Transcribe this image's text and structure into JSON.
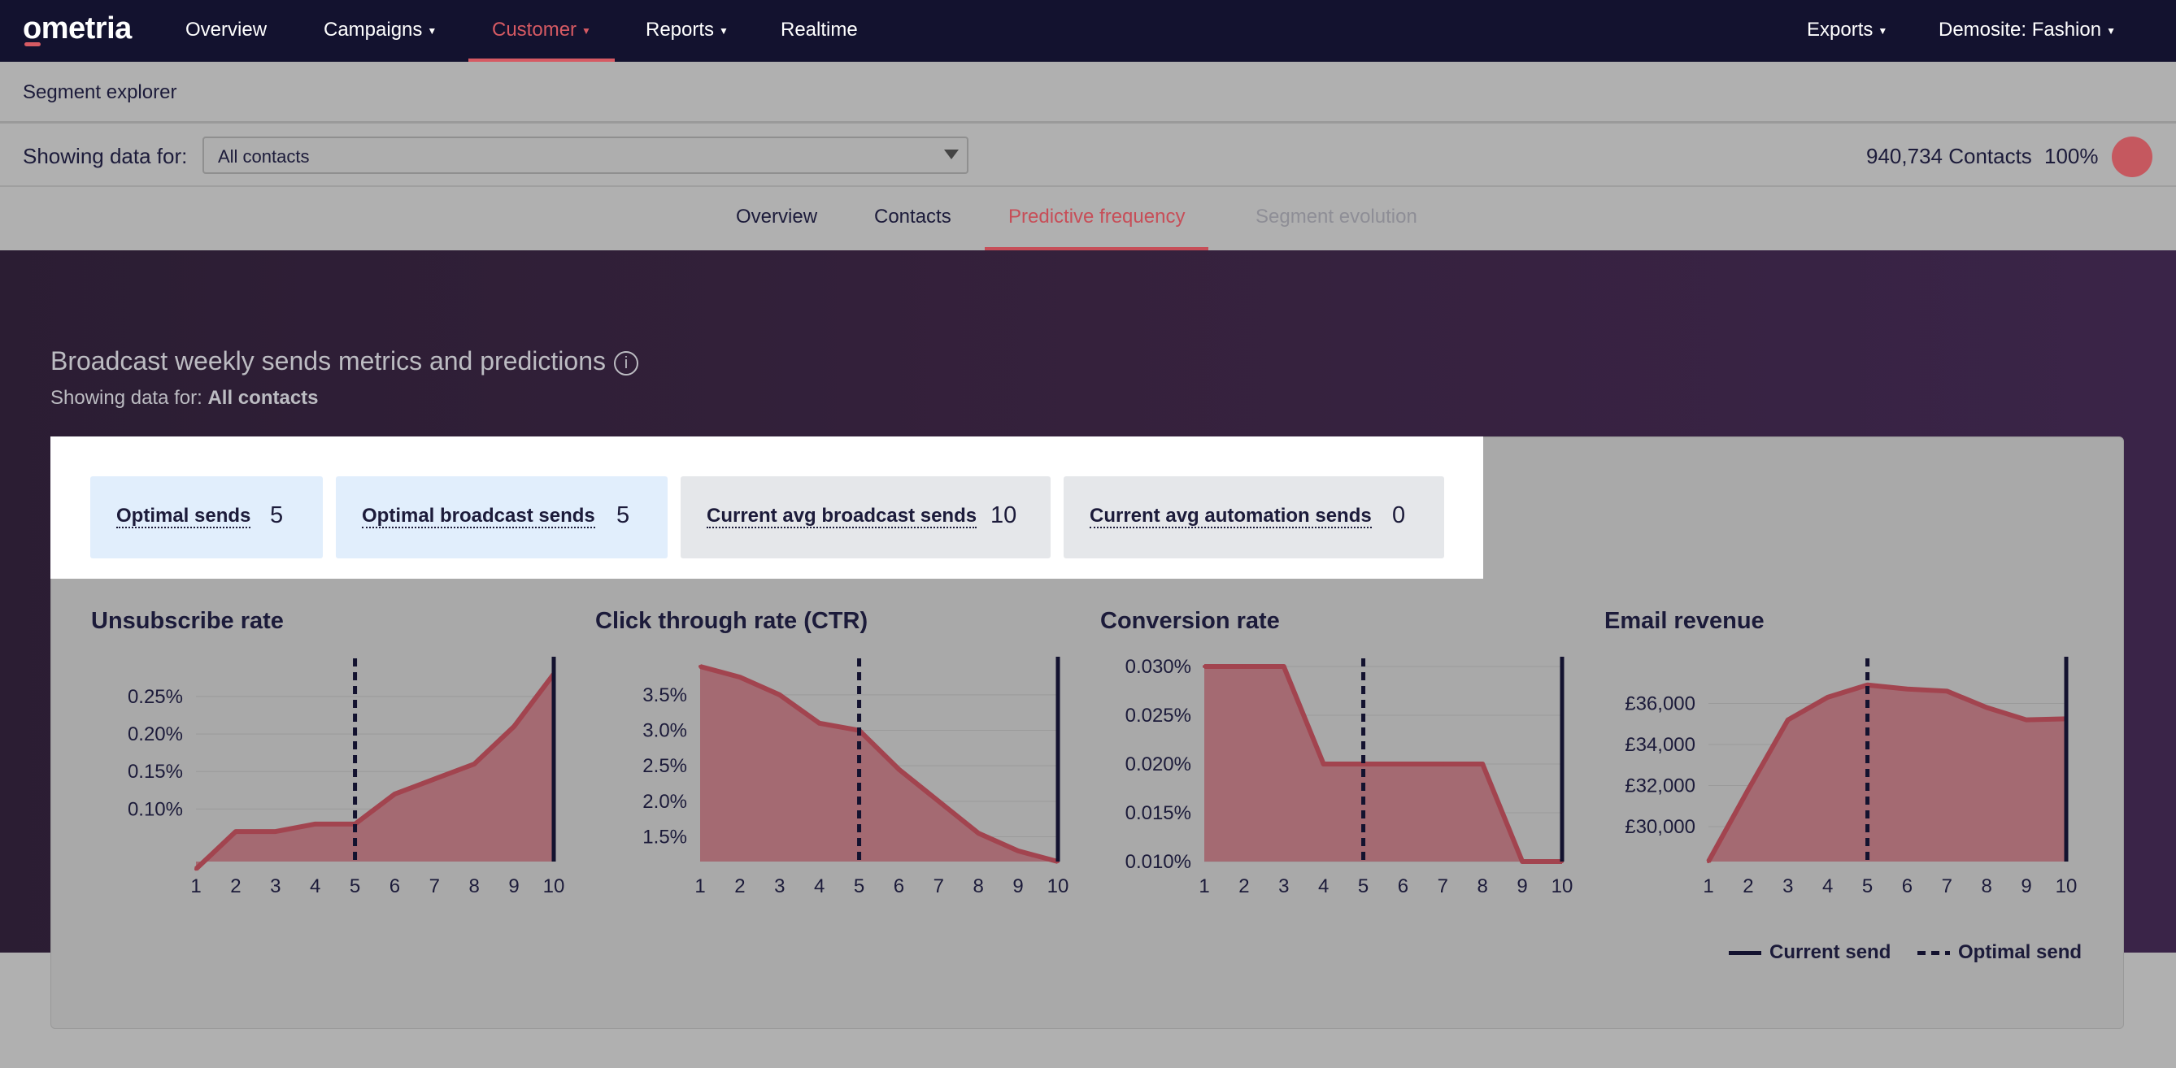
{
  "nav": {
    "logo": "ometria",
    "items": [
      {
        "label": "Overview",
        "caret": false
      },
      {
        "label": "Campaigns",
        "caret": true
      },
      {
        "label": "Customer",
        "caret": true
      },
      {
        "label": "Reports",
        "caret": true
      },
      {
        "label": "Realtime",
        "caret": false
      }
    ],
    "active": "Customer",
    "right": [
      {
        "label": "Exports",
        "caret": true
      },
      {
        "label": "Demosite: Fashion",
        "caret": true
      }
    ]
  },
  "segment": {
    "title": "Segment explorer"
  },
  "filter": {
    "label": "Showing data for:",
    "selected": "All contacts",
    "contacts": "940,734 Contacts",
    "percent": "100%"
  },
  "tabs": [
    {
      "label": "Overview",
      "state": "normal"
    },
    {
      "label": "Contacts",
      "state": "normal"
    },
    {
      "label": "Predictive frequency",
      "state": "active"
    },
    {
      "label": "Segment evolution",
      "state": "disabled"
    }
  ],
  "hero": {
    "title": "Broadcast weekly sends metrics and predictions",
    "sub_prefix": "Showing data for:",
    "sub_value": "All contacts"
  },
  "metrics": [
    {
      "label": "Optimal sends",
      "value": "5",
      "style": "blue"
    },
    {
      "label": "Optimal broadcast sends",
      "value": "5",
      "style": "blue"
    },
    {
      "label": "Current avg broadcast sends",
      "value": "10",
      "style": "grey"
    },
    {
      "label": "Current avg automation sends",
      "value": "0",
      "style": "grey"
    }
  ],
  "colors": {
    "accent": "#d65a63",
    "area_fill": "#a46a72",
    "line": "#a2444f",
    "marker": "#13122f",
    "nav_bg": "#13122f"
  },
  "legend": {
    "current": "Current send",
    "optimal": "Optimal send"
  },
  "chart_data": [
    {
      "type": "area",
      "title": "Unsubscribe rate",
      "x": [
        1,
        2,
        3,
        4,
        5,
        6,
        7,
        8,
        9,
        10
      ],
      "values": [
        0.0002,
        0.0007,
        0.0007,
        0.0008,
        0.0008,
        0.0012,
        0.0014,
        0.0016,
        0.0021,
        0.0028
      ],
      "ylim": [
        0.0003,
        0.0029
      ],
      "yticks": [
        0.001,
        0.0015,
        0.002,
        0.0025
      ],
      "ytick_labels": [
        "0.10%",
        "0.15%",
        "0.20%",
        "0.25%"
      ],
      "current_send": 10,
      "optimal_send": 5
    },
    {
      "type": "area",
      "title": "Click through rate (CTR)",
      "x": [
        1,
        2,
        3,
        4,
        5,
        6,
        7,
        8,
        9,
        10
      ],
      "values": [
        0.039,
        0.0375,
        0.035,
        0.031,
        0.03,
        0.0245,
        0.02,
        0.0155,
        0.013,
        0.0115
      ],
      "ylim": [
        0.0115,
        0.039
      ],
      "yticks": [
        0.015,
        0.02,
        0.025,
        0.03,
        0.035
      ],
      "ytick_labels": [
        "1.5%",
        "2.0%",
        "2.5%",
        "3.0%",
        "3.5%"
      ],
      "current_send": 10,
      "optimal_send": 5
    },
    {
      "type": "area",
      "title": "Conversion rate",
      "x": [
        1,
        2,
        3,
        4,
        5,
        6,
        7,
        8,
        9,
        10
      ],
      "values": [
        0.0003,
        0.0003,
        0.0003,
        0.0002,
        0.0002,
        0.0002,
        0.0002,
        0.0002,
        0.0001,
        0.0001
      ],
      "ylim": [
        0.0001,
        0.0003
      ],
      "yticks": [
        0.0001,
        0.00015,
        0.0002,
        0.00025,
        0.0003
      ],
      "ytick_labels": [
        "0.010%",
        "0.015%",
        "0.020%",
        "0.025%",
        "0.030%"
      ],
      "current_send": 10,
      "optimal_send": 5
    },
    {
      "type": "area",
      "title": "Email revenue",
      "x": [
        1,
        2,
        3,
        4,
        5,
        6,
        7,
        8,
        9,
        10
      ],
      "values": [
        28300,
        31800,
        35200,
        36300,
        36900,
        36700,
        36600,
        35800,
        35200,
        35250
      ],
      "ylim": [
        28300,
        37800
      ],
      "yticks": [
        30000,
        32000,
        34000,
        36000
      ],
      "ytick_labels": [
        "£30,000",
        "£32,000",
        "£34,000",
        "£36,000"
      ],
      "current_send": 10,
      "optimal_send": 5
    }
  ]
}
